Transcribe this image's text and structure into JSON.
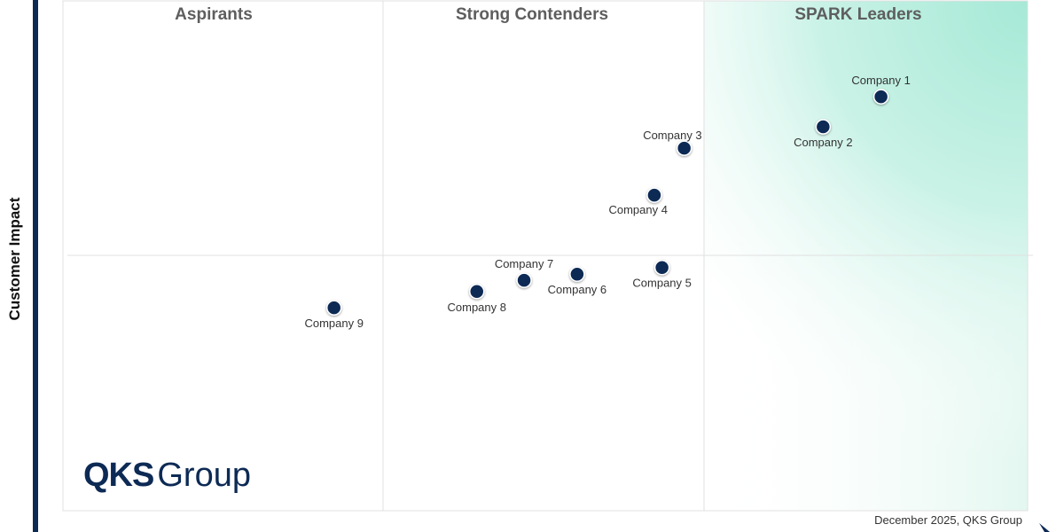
{
  "chart_data": {
    "type": "scatter",
    "title": "",
    "xlabel": "",
    "ylabel": "Customer Impact",
    "xlim": [
      0,
      100
    ],
    "ylim": [
      0,
      100
    ],
    "grid": false,
    "quadrants": [
      "Aspirants",
      "Strong Contenders",
      "SPARK Leaders"
    ],
    "points": [
      {
        "name": "Company 1",
        "x": 84.8,
        "y": 81.2,
        "label_pos": "top"
      },
      {
        "name": "Company 2",
        "x": 78.8,
        "y": 75.3,
        "label_pos": "bottom"
      },
      {
        "name": "Company 3",
        "x": 64.4,
        "y": 71.1,
        "label_pos": "top-left"
      },
      {
        "name": "Company 4",
        "x": 61.3,
        "y": 61.9,
        "label_pos": "bottom-left"
      },
      {
        "name": "Company 5",
        "x": 62.1,
        "y": 47.7,
        "label_pos": "bottom"
      },
      {
        "name": "Company 6",
        "x": 53.3,
        "y": 46.4,
        "label_pos": "bottom"
      },
      {
        "name": "Company 7",
        "x": 47.8,
        "y": 45.2,
        "label_pos": "top"
      },
      {
        "name": "Company 8",
        "x": 42.9,
        "y": 43.0,
        "label_pos": "bottom"
      },
      {
        "name": "Company 9",
        "x": 28.1,
        "y": 39.8,
        "label_pos": "bottom"
      }
    ],
    "colors": {
      "point": "#0d2a55",
      "leader_gradient": "#a6e9d6",
      "axis_bar": "#0d2a55"
    }
  },
  "logo": {
    "bold": "QKS",
    "regular": "Group"
  },
  "footer": "December 2025, QKS Group"
}
